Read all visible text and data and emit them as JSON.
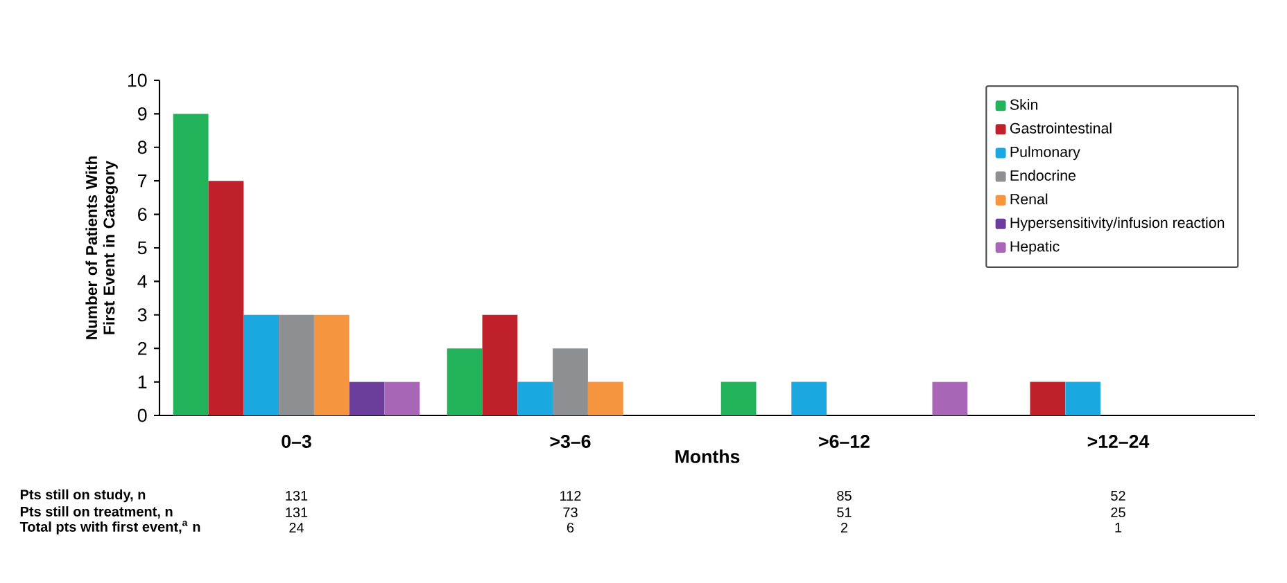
{
  "chart_data": {
    "type": "bar",
    "xlabel": "Months",
    "ylabel": "Number of Patients With First Event in Category",
    "categories": [
      "0–3",
      ">3–6",
      ">6–12",
      ">12–24"
    ],
    "series": [
      {
        "name": "Skin",
        "color": "#22b25a",
        "values": [
          9,
          2,
          1,
          0
        ]
      },
      {
        "name": "Gastrointestinal",
        "color": "#c0202a",
        "values": [
          7,
          3,
          0,
          1
        ]
      },
      {
        "name": "Pulmonary",
        "color": "#1ba8e0",
        "values": [
          3,
          1,
          1,
          1
        ]
      },
      {
        "name": "Endocrine",
        "color": "#8d8f92",
        "values": [
          3,
          2,
          0,
          0
        ]
      },
      {
        "name": "Renal",
        "color": "#f6953f",
        "values": [
          3,
          1,
          0,
          0
        ]
      },
      {
        "name": "Hypersensitivity/infusion reaction",
        "color": "#6b3d9a",
        "values": [
          1,
          0,
          0,
          0
        ]
      },
      {
        "name": "Hepatic",
        "color": "#a866b6",
        "values": [
          1,
          0,
          1,
          0
        ]
      }
    ],
    "ylim": [
      0,
      10
    ],
    "yticks": [
      0,
      1,
      2,
      3,
      4,
      5,
      6,
      7,
      8,
      9,
      10
    ],
    "legend": "top right",
    "annotations": [
      "Pts still on study, n",
      "131",
      "112",
      "85",
      "52",
      "Pts still on treatment, n",
      "131",
      "73",
      "51",
      "25",
      "Total pts with first event,$^{a}$ n",
      "24",
      "6",
      "2",
      "1"
    ]
  }
}
